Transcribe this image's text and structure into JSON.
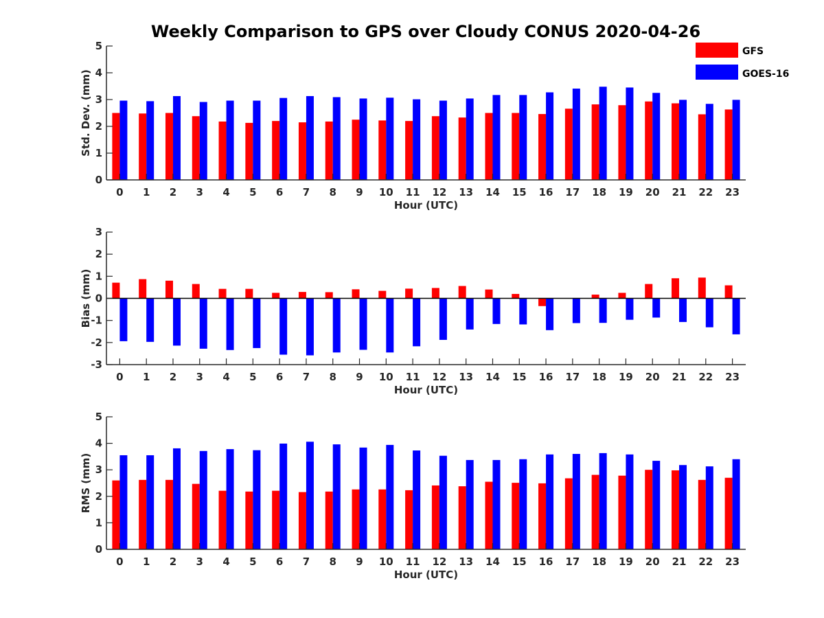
{
  "title": "Weekly Comparison to GPS over Cloudy CONUS 2020-04-26",
  "legend": {
    "placement": "top-right",
    "entries": [
      {
        "label": "GFS",
        "color": "#ff0000"
      },
      {
        "label": "GOES-16",
        "color": "#0000ff"
      }
    ]
  },
  "chart_data": [
    {
      "type": "bar",
      "xlabel": "Hour (UTC)",
      "ylabel": "Std. Dev. (mm)",
      "ylim": [
        0,
        5
      ],
      "yticks": [
        0,
        1,
        2,
        3,
        4,
        5
      ],
      "grid": false,
      "categories": [
        "0",
        "1",
        "2",
        "3",
        "4",
        "5",
        "6",
        "7",
        "8",
        "9",
        "10",
        "11",
        "12",
        "13",
        "14",
        "15",
        "16",
        "17",
        "18",
        "19",
        "20",
        "21",
        "22",
        "23"
      ],
      "series": [
        {
          "name": "GFS",
          "color": "#ff0000",
          "values": [
            2.5,
            2.48,
            2.5,
            2.38,
            2.18,
            2.13,
            2.2,
            2.15,
            2.18,
            2.25,
            2.22,
            2.2,
            2.38,
            2.33,
            2.5,
            2.5,
            2.46,
            2.66,
            2.82,
            2.79,
            2.93,
            2.86,
            2.45,
            2.63
          ]
        },
        {
          "name": "GOES-16",
          "color": "#0000ff",
          "values": [
            2.96,
            2.94,
            3.13,
            2.91,
            2.96,
            2.96,
            3.06,
            3.13,
            3.09,
            3.04,
            3.07,
            3.01,
            2.96,
            3.04,
            3.17,
            3.17,
            3.27,
            3.41,
            3.48,
            3.45,
            3.25,
            2.99,
            2.84,
            2.99
          ]
        }
      ]
    },
    {
      "type": "bar",
      "xlabel": "Hour (UTC)",
      "ylabel": "Bias (mm)",
      "ylim": [
        -3,
        3
      ],
      "yticks": [
        -3,
        -2,
        -1,
        0,
        1,
        2,
        3
      ],
      "grid": false,
      "zero_line": true,
      "categories": [
        "0",
        "1",
        "2",
        "3",
        "4",
        "5",
        "6",
        "7",
        "8",
        "9",
        "10",
        "11",
        "12",
        "13",
        "14",
        "15",
        "16",
        "17",
        "18",
        "19",
        "20",
        "21",
        "22",
        "23"
      ],
      "series": [
        {
          "name": "GFS",
          "color": "#ff0000",
          "values": [
            0.71,
            0.87,
            0.8,
            0.65,
            0.43,
            0.43,
            0.25,
            0.29,
            0.28,
            0.41,
            0.34,
            0.44,
            0.47,
            0.56,
            0.4,
            0.2,
            -0.35,
            0.0,
            0.17,
            0.25,
            0.65,
            0.91,
            0.94,
            0.59
          ]
        },
        {
          "name": "GOES-16",
          "color": "#0000ff",
          "values": [
            -1.94,
            -1.97,
            -2.14,
            -2.28,
            -2.34,
            -2.25,
            -2.55,
            -2.58,
            -2.45,
            -2.33,
            -2.45,
            -2.17,
            -1.88,
            -1.41,
            -1.16,
            -1.18,
            -1.44,
            -1.12,
            -1.11,
            -0.97,
            -0.87,
            -1.07,
            -1.31,
            -1.63
          ]
        }
      ]
    },
    {
      "type": "bar",
      "xlabel": "Hour (UTC)",
      "ylabel": "RMS (mm)",
      "ylim": [
        0,
        5
      ],
      "yticks": [
        0,
        1,
        2,
        3,
        4,
        5
      ],
      "grid": false,
      "categories": [
        "0",
        "1",
        "2",
        "3",
        "4",
        "5",
        "6",
        "7",
        "8",
        "9",
        "10",
        "11",
        "12",
        "13",
        "14",
        "15",
        "16",
        "17",
        "18",
        "19",
        "20",
        "21",
        "22",
        "23"
      ],
      "series": [
        {
          "name": "GFS",
          "color": "#ff0000",
          "values": [
            2.6,
            2.62,
            2.62,
            2.47,
            2.21,
            2.18,
            2.21,
            2.16,
            2.18,
            2.26,
            2.26,
            2.23,
            2.41,
            2.38,
            2.55,
            2.51,
            2.49,
            2.68,
            2.81,
            2.78,
            3.0,
            2.98,
            2.62,
            2.7
          ]
        },
        {
          "name": "GOES-16",
          "color": "#0000ff",
          "values": [
            3.55,
            3.55,
            3.81,
            3.71,
            3.78,
            3.74,
            3.99,
            4.06,
            3.96,
            3.84,
            3.94,
            3.73,
            3.53,
            3.37,
            3.37,
            3.4,
            3.58,
            3.6,
            3.63,
            3.58,
            3.34,
            3.18,
            3.13,
            3.4
          ]
        }
      ]
    }
  ]
}
